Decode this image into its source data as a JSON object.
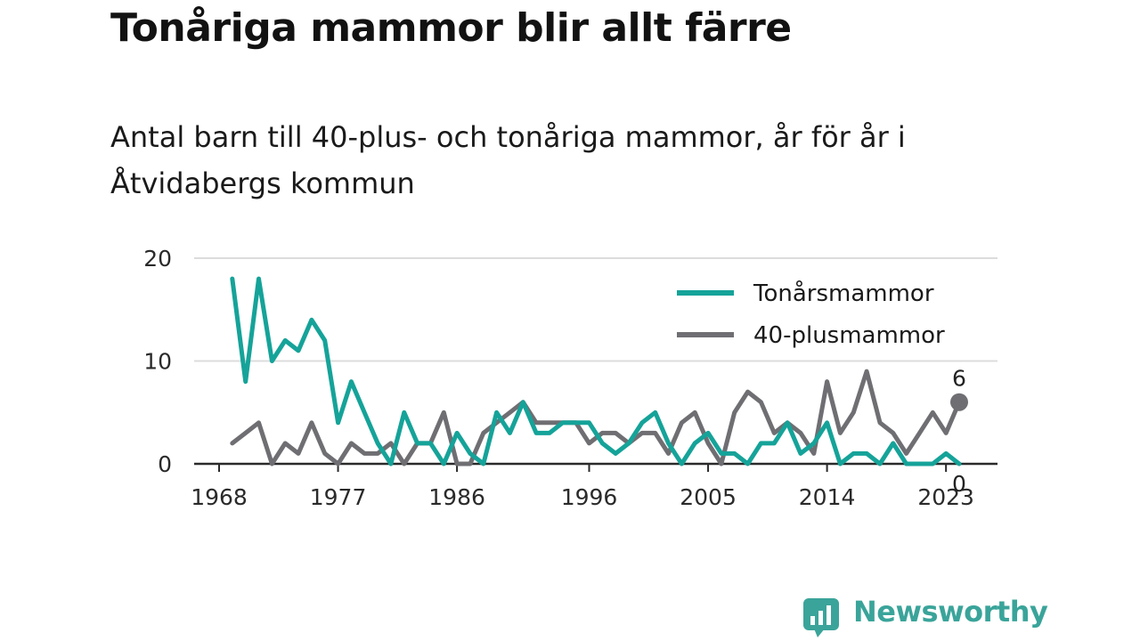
{
  "title": "Tonåriga mammor blir allt färre",
  "subtitle": "Antal barn till 40-plus- och tonåriga mammor, år för år i Åtvidabergs kommun",
  "brand": {
    "name": "Newsworthy",
    "color": "#3aa49a",
    "icon": "bar-chart-speech-bubble-icon"
  },
  "chart_data": {
    "type": "line",
    "title": "",
    "xlabel": "",
    "ylabel": "",
    "x": [
      1969,
      1970,
      1971,
      1972,
      1973,
      1974,
      1975,
      1976,
      1977,
      1978,
      1979,
      1980,
      1981,
      1982,
      1983,
      1984,
      1985,
      1986,
      1987,
      1988,
      1989,
      1990,
      1991,
      1992,
      1993,
      1994,
      1995,
      1996,
      1997,
      1998,
      1999,
      2000,
      2001,
      2002,
      2003,
      2004,
      2005,
      2006,
      2007,
      2008,
      2009,
      2010,
      2011,
      2012,
      2013,
      2014,
      2015,
      2016,
      2017,
      2018,
      2019,
      2020,
      2021,
      2022,
      2023,
      2024
    ],
    "xlim": [
      1968,
      2024.5
    ],
    "ylim": [
      0,
      20
    ],
    "x_ticks": [
      "1968",
      "1977",
      "1986",
      "1996",
      "2005",
      "2014",
      "2023"
    ],
    "x_tick_values": [
      1968,
      1977,
      1986,
      1996,
      2005,
      2014,
      2023
    ],
    "y_ticks": [
      "0",
      "10",
      "20"
    ],
    "y_tick_values": [
      0,
      10,
      20
    ],
    "grid": "horizontal",
    "legend_position": "top-right",
    "series": [
      {
        "name": "Tonårsmammor",
        "color": "#15a399",
        "values": [
          18,
          8,
          18,
          10,
          12,
          11,
          14,
          12,
          4,
          8,
          5,
          2,
          0,
          5,
          2,
          2,
          0,
          3,
          1,
          0,
          5,
          3,
          6,
          3,
          3,
          4,
          4,
          4,
          2,
          1,
          2,
          4,
          5,
          2,
          0,
          2,
          3,
          1,
          1,
          0,
          2,
          2,
          4,
          1,
          2,
          4,
          0,
          1,
          1,
          0,
          2,
          0,
          0,
          0,
          1,
          0
        ],
        "end_label": "0"
      },
      {
        "name": "40-plusmammor",
        "color": "#6f6e72",
        "values": [
          2,
          3,
          4,
          0,
          2,
          1,
          4,
          1,
          0,
          2,
          1,
          1,
          2,
          0,
          2,
          2,
          5,
          0,
          0,
          3,
          4,
          5,
          6,
          4,
          4,
          4,
          4,
          2,
          3,
          3,
          2,
          3,
          3,
          1,
          4,
          5,
          2,
          0,
          5,
          7,
          6,
          3,
          4,
          3,
          1,
          8,
          3,
          5,
          9,
          4,
          3,
          1,
          3,
          5,
          3,
          6
        ],
        "end_label": "6"
      }
    ]
  }
}
